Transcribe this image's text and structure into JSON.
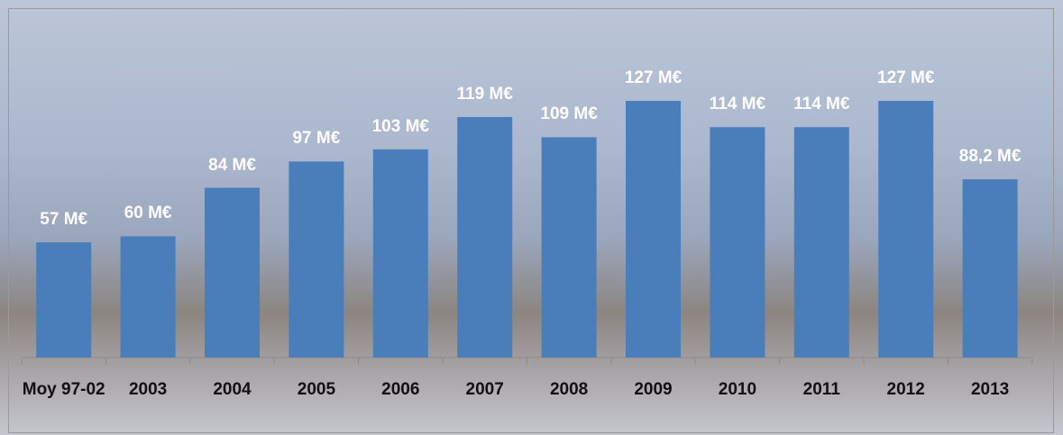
{
  "chart_data": {
    "type": "bar",
    "categories": [
      "Moy 97-02",
      "2003",
      "2004",
      "2005",
      "2006",
      "2007",
      "2008",
      "2009",
      "2010",
      "2011",
      "2012",
      "2013"
    ],
    "values": [
      57,
      60,
      84,
      97,
      103,
      119,
      109,
      127,
      114,
      114,
      127,
      88.2
    ],
    "value_labels": [
      "57 M€",
      "60 M€",
      "84 M€",
      "97 M€",
      "103 M€",
      "119 M€",
      "109 M€",
      "127 M€",
      "114 M€",
      "114 M€",
      "127 M€",
      "88,2 M€"
    ],
    "color": "#4a7ebb"
  }
}
